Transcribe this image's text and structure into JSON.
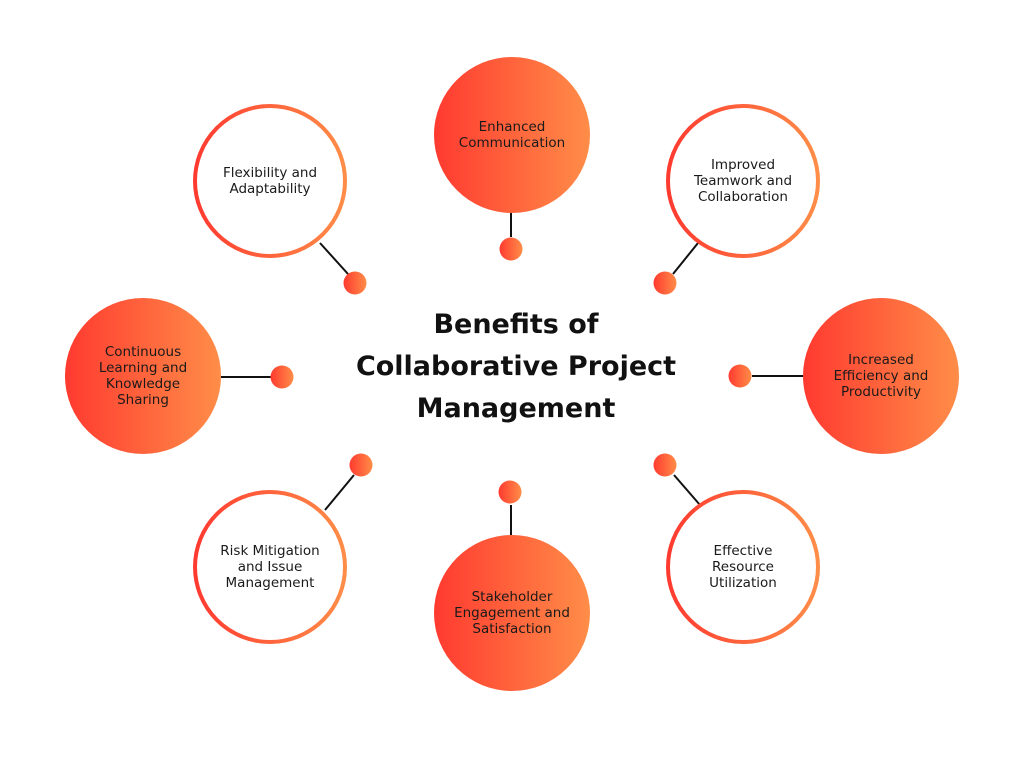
{
  "title": [
    "Benefits of",
    "Collaborative Project",
    "Management"
  ],
  "colors": {
    "gradient_start": "#ff3a30",
    "gradient_end": "#ff8d48",
    "connector": "#111111"
  },
  "nodes": [
    {
      "label": "Enhanced Communication",
      "style": "filled"
    },
    {
      "label": "Improved Teamwork and Collaboration",
      "style": "ring"
    },
    {
      "label": "Increased Efficiency and Productivity",
      "style": "filled"
    },
    {
      "label": "Effective Resource Utilization",
      "style": "ring"
    },
    {
      "label": "Stakeholder Engagement and Satisfaction",
      "style": "filled"
    },
    {
      "label": "Risk Mitigation and Issue Management",
      "style": "ring"
    },
    {
      "label": "Continuous Learning and Knowledge Sharing",
      "style": "filled"
    },
    {
      "label": "Flexibility and Adaptability",
      "style": "ring"
    }
  ]
}
